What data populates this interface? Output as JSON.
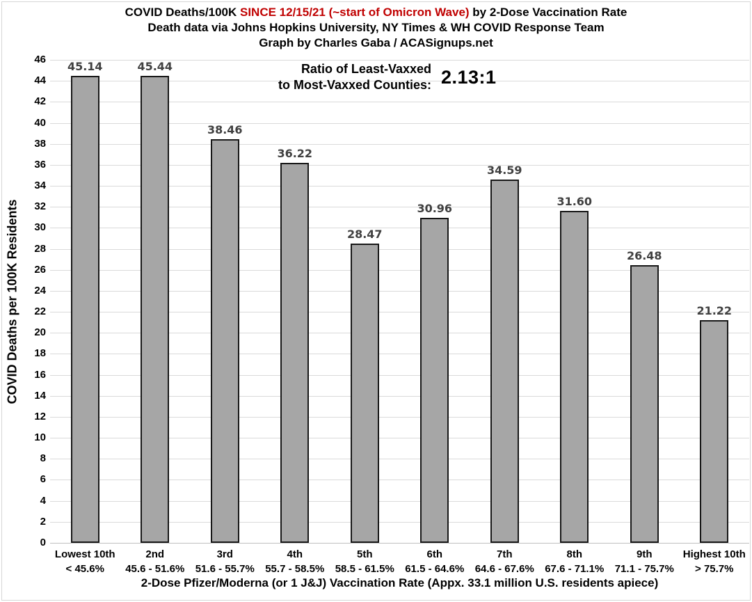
{
  "header": {
    "title_part1": "COVID Deaths/100K ",
    "title_part2": "SINCE 12/15/21 (~start of Omicron Wave)",
    "title_part3": " by 2-Dose Vaccination Rate",
    "subtitle1": "Death data via Johns Hopkins University, NY Times & WH COVID Response Team",
    "subtitle2": "Graph by Charles Gaba / ACASignups.net"
  },
  "annotation": {
    "line1": "Ratio of Least-Vaxxed",
    "line2": "to Most-Vaxxed Counties:",
    "value": "2.13:1"
  },
  "chart_data": {
    "type": "bar",
    "title": "COVID Deaths/100K SINCE 12/15/21 (~start of Omicron Wave) by 2-Dose Vaccination Rate",
    "categories": [
      "Lowest 10th",
      "2nd",
      "3rd",
      "4th",
      "5th",
      "6th",
      "7th",
      "8th",
      "9th",
      "Highest 10th"
    ],
    "category_ranges": [
      "< 45.6%",
      "45.6 - 51.6%",
      "51.6 - 55.7%",
      "55.7 - 58.5%",
      "58.5 - 61.5%",
      "61.5 - 64.6%",
      "64.6 - 67.6%",
      "67.6 - 71.1%",
      "71.1 - 75.7%",
      "> 75.7%"
    ],
    "values": [
      45.14,
      45.44,
      38.46,
      36.22,
      28.47,
      30.96,
      34.59,
      31.6,
      26.48,
      21.22
    ],
    "value_labels": [
      "45.14",
      "45.44",
      "38.46",
      "36.22",
      "28.47",
      "30.96",
      "34.59",
      "31.60",
      "26.48",
      "21.22"
    ],
    "ylabel": "COVID Deaths per 100K Residents",
    "xlabel": "2-Dose Pfizer/Moderna (or 1 J&J) Vaccination Rate (Appx. 33.1 million U.S. residents apiece)",
    "ylim": [
      0,
      46
    ],
    "ytick_step": 2,
    "grid": true,
    "legend": "none",
    "bar_color": "#a6a6a6",
    "bar_border_color": "#171717",
    "value_label_color": "#404040",
    "gridline_color": "#dadada",
    "accent_red": "#c00000"
  }
}
